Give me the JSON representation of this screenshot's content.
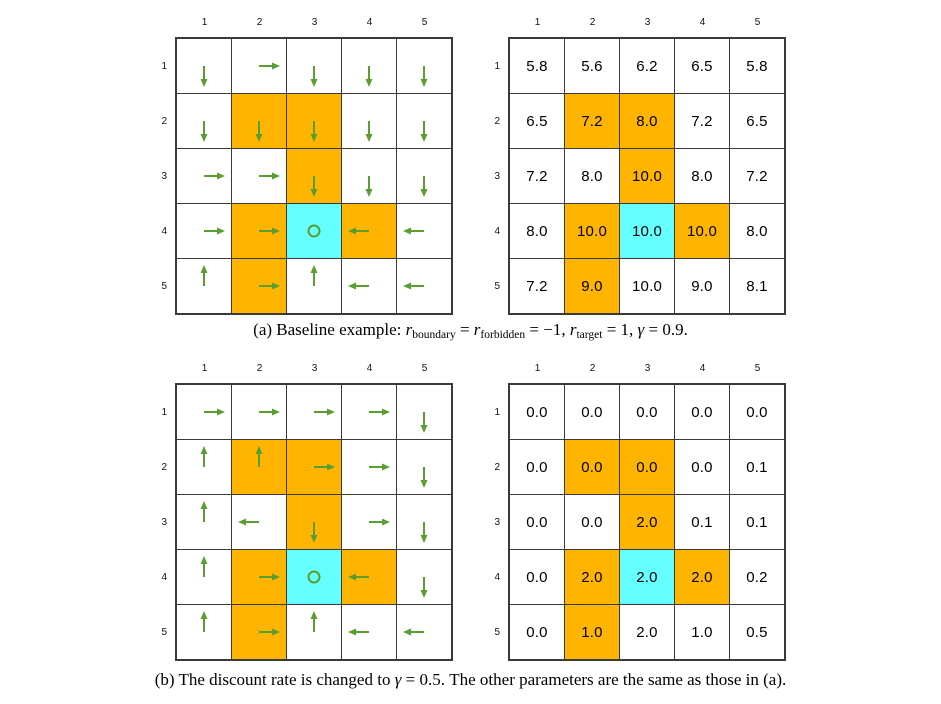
{
  "colors": {
    "forbidden": "#ffb400",
    "target": "#66ffff",
    "arrow": "#5a9e32",
    "line": "#3a3a3a"
  },
  "captions": {
    "a": {
      "pre": "(a) Baseline example: ",
      "var1": "r",
      "sub1": "boundary",
      "mid1": " = ",
      "var2": "r",
      "sub2": "forbidden",
      "mid2": " = −1, ",
      "var3": "r",
      "sub3": "target",
      "mid3": " = 1, ",
      "var4": "γ",
      "end": " = 0.9."
    },
    "b": {
      "pre": "(b) The discount rate is changed to ",
      "var1": "γ",
      "end": " = 0.5. The other parameters are the same as those in (a)."
    }
  },
  "grids": {
    "col_labels": [
      "1",
      "2",
      "3",
      "4",
      "5"
    ],
    "row_labels": [
      "1",
      "2",
      "3",
      "4",
      "5"
    ],
    "policy_a": {
      "kind": "policy",
      "cells": [
        [
          "down",
          "right",
          "down",
          "down",
          "down"
        ],
        [
          "down",
          "down",
          "down",
          "down",
          "down"
        ],
        [
          "right",
          "right",
          "down",
          "down",
          "down"
        ],
        [
          "right",
          "right",
          "circle",
          "left",
          "left"
        ],
        [
          "up",
          "right",
          "up",
          "left",
          "left"
        ]
      ],
      "forbidden": [
        [
          1,
          1
        ],
        [
          1,
          2
        ],
        [
          2,
          2
        ],
        [
          3,
          1
        ],
        [
          3,
          3
        ],
        [
          4,
          1
        ]
      ],
      "target": [
        3,
        2
      ]
    },
    "values_a": {
      "kind": "values",
      "cells": [
        [
          "5.8",
          "5.6",
          "6.2",
          "6.5",
          "5.8"
        ],
        [
          "6.5",
          "7.2",
          "8.0",
          "7.2",
          "6.5"
        ],
        [
          "7.2",
          "8.0",
          "10.0",
          "8.0",
          "7.2"
        ],
        [
          "8.0",
          "10.0",
          "10.0",
          "10.0",
          "8.0"
        ],
        [
          "7.2",
          "9.0",
          "10.0",
          "9.0",
          "8.1"
        ]
      ],
      "forbidden": [
        [
          1,
          1
        ],
        [
          1,
          2
        ],
        [
          2,
          2
        ],
        [
          3,
          1
        ],
        [
          3,
          3
        ],
        [
          4,
          1
        ]
      ],
      "target": [
        3,
        2
      ]
    },
    "policy_b": {
      "kind": "policy",
      "cells": [
        [
          "right",
          "right",
          "right",
          "right",
          "down"
        ],
        [
          "up",
          "up",
          "right",
          "right",
          "down"
        ],
        [
          "up",
          "left",
          "down",
          "right",
          "down"
        ],
        [
          "up",
          "right",
          "circle",
          "left",
          "down"
        ],
        [
          "up",
          "right",
          "up",
          "left",
          "left"
        ]
      ],
      "forbidden": [
        [
          1,
          1
        ],
        [
          1,
          2
        ],
        [
          2,
          2
        ],
        [
          3,
          1
        ],
        [
          3,
          3
        ],
        [
          4,
          1
        ]
      ],
      "target": [
        3,
        2
      ]
    },
    "values_b": {
      "kind": "values",
      "cells": [
        [
          "0.0",
          "0.0",
          "0.0",
          "0.0",
          "0.0"
        ],
        [
          "0.0",
          "0.0",
          "0.0",
          "0.0",
          "0.1"
        ],
        [
          "0.0",
          "0.0",
          "2.0",
          "0.1",
          "0.1"
        ],
        [
          "0.0",
          "2.0",
          "2.0",
          "2.0",
          "0.2"
        ],
        [
          "0.0",
          "1.0",
          "2.0",
          "1.0",
          "0.5"
        ]
      ],
      "forbidden": [
        [
          1,
          1
        ],
        [
          1,
          2
        ],
        [
          2,
          2
        ],
        [
          3,
          1
        ],
        [
          3,
          3
        ],
        [
          4,
          1
        ]
      ],
      "target": [
        3,
        2
      ]
    }
  }
}
